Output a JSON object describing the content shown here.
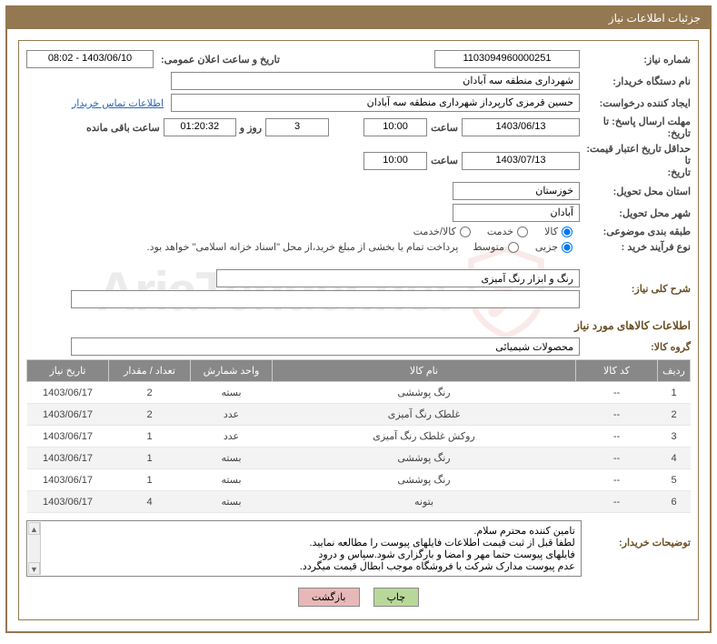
{
  "header_title": "جزئیات اطلاعات نیاز",
  "fields": {
    "need_number_label": "شماره نیاز:",
    "need_number": "1103094960000251",
    "announce_label": "تاریخ و ساعت اعلان عمومی:",
    "announce_value": "1403/06/10 - 08:02",
    "buyer_label": "نام دستگاه خریدار:",
    "buyer_value": "شهرداری منطقه سه آبادان",
    "requester_label": "ایجاد کننده درخواست:",
    "requester_value": "حسین قرمزی کارپرداز شهرداری منطقه سه آبادان",
    "contact_link": "اطلاعات تماس خریدار",
    "deadline_label1": "مهلت ارسال پاسخ: تا",
    "deadline_label2": "تاریخ:",
    "deadline_date": "1403/06/13",
    "time_label": "ساعت",
    "deadline_time": "10:00",
    "days_val": "3",
    "days_unit": "روز و",
    "counter": "01:20:32",
    "counter_suffix": "ساعت باقی مانده",
    "validity_label1": "حداقل تاریخ اعتبار قیمت: تا",
    "validity_label2": "تاریخ:",
    "validity_date": "1403/07/13",
    "validity_time": "10:00",
    "province_label": "استان محل تحویل:",
    "province_value": "خوزستان",
    "city_label": "شهر محل تحویل:",
    "city_value": "آبادان",
    "category_label": "طبقه بندی موضوعی:",
    "buy_type_label": "نوع فرآیند خرید :",
    "payment_note": "پرداخت تمام یا بخشی از مبلغ خرید،از محل \"اسناد خزانه اسلامی\" خواهد بود.",
    "cat_radios": [
      "کالا",
      "خدمت",
      "کالا/خدمت"
    ],
    "type_radios": [
      "جزیی",
      "متوسط"
    ],
    "summary_label": "شرح کلی نیاز:",
    "summary_value": "رنگ و ابزار رنگ آمیزی",
    "items_section": "اطلاعات کالاهای مورد نیاز",
    "group_label": "گروه کالا:",
    "group_value": "محصولات شیمیائی",
    "buyer_notes_label": "توضیحات خریدار:",
    "buyer_notes": "تامین کننده محترم سلام.\nلطفا قبل از ثبت قیمت اطلاعات فایلهای پیوست را مطالعه نمایید.\nفایلهای پیوست حتما مهر و امضا و بارگزاری شود.سپاس و درود\nعدم پیوست مدارک شرکت یا فروشگاه موجب ابطال قیمت میگردد.",
    "print_btn": "چاپ",
    "back_btn": "بازگشت"
  },
  "table": {
    "headers": [
      "ردیف",
      "کد کالا",
      "نام کالا",
      "واحد شمارش",
      "تعداد / مقدار",
      "تاریخ نیاز"
    ],
    "rows": [
      [
        "1",
        "--",
        "رنگ پوششی",
        "بسته",
        "2",
        "1403/06/17"
      ],
      [
        "2",
        "--",
        "غلطک رنگ آمیزی",
        "عدد",
        "2",
        "1403/06/17"
      ],
      [
        "3",
        "--",
        "روکش غلطک رنگ آمیزی",
        "عدد",
        "1",
        "1403/06/17"
      ],
      [
        "4",
        "--",
        "رنگ پوششی",
        "بسته",
        "1",
        "1403/06/17"
      ],
      [
        "5",
        "--",
        "رنگ پوششی",
        "بسته",
        "1",
        "1403/06/17"
      ],
      [
        "6",
        "--",
        "بتونه",
        "بسته",
        "4",
        "1403/06/17"
      ]
    ]
  },
  "colors": {
    "brand": "#947851",
    "section_title": "#6b4f22",
    "link": "#2b66b8",
    "th_bg": "#888888",
    "btn_green": "#b8d89a",
    "btn_pink": "#e8b8b8"
  }
}
